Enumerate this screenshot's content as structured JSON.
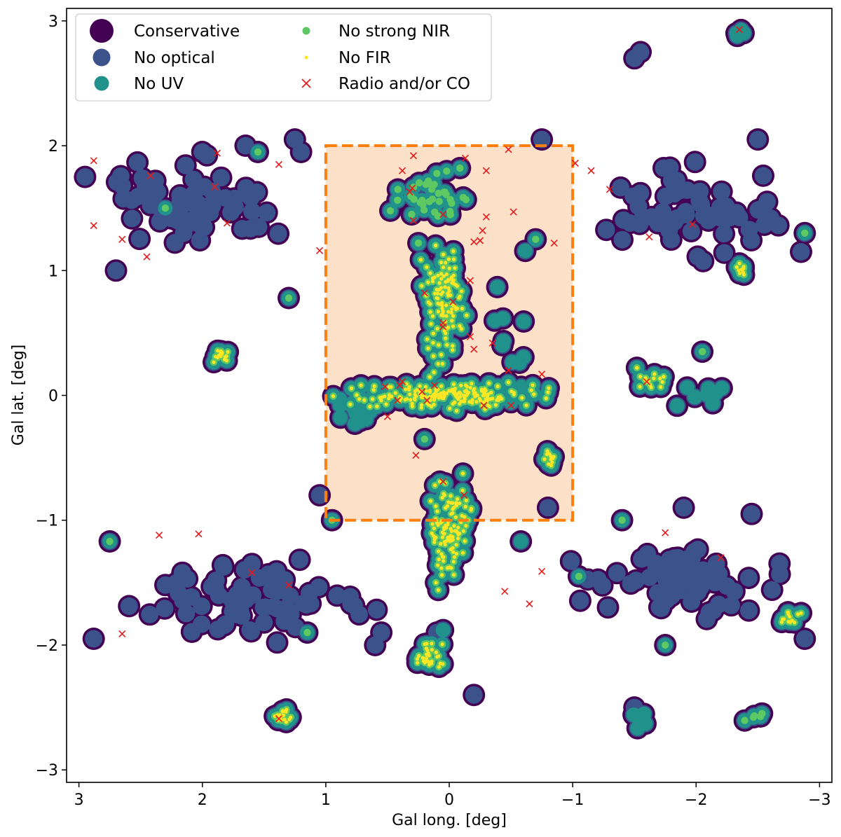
{
  "chart_data": {
    "type": "scatter",
    "xlabel": "Gal long. [deg]",
    "ylabel": "Gal lat. [deg]",
    "xlim": [
      3.1,
      -3.1
    ],
    "ylim": [
      -3.1,
      3.1
    ],
    "x_reversed": true,
    "x_ticks": [
      3,
      2,
      1,
      0,
      -1,
      -2,
      -3
    ],
    "y_ticks": [
      3,
      2,
      1,
      0,
      -1,
      -2,
      -3
    ],
    "x_tick_labels": [
      "3",
      "2",
      "1",
      "0",
      "−1",
      "−2",
      "−3"
    ],
    "y_tick_labels": [
      "3",
      "2",
      "1",
      "0",
      "−1",
      "−2",
      "−3"
    ],
    "grid": false,
    "legend_position": "top-left",
    "legend": [
      {
        "label": "Conservative",
        "marker": "circle-xl",
        "color": "#440154"
      },
      {
        "label": "No optical",
        "marker": "circle-lg",
        "color": "#3b528b"
      },
      {
        "label": "No UV",
        "marker": "circle-md",
        "color": "#21918c"
      },
      {
        "label": "No strong NIR",
        "marker": "circle-sm",
        "color": "#5ec962"
      },
      {
        "label": "No FIR",
        "marker": "circle-xs",
        "color": "#fde725"
      },
      {
        "label": "Radio and/or CO",
        "marker": "x",
        "color": "#e31a1c"
      }
    ],
    "region": {
      "l_min": -1,
      "l_max": 1,
      "b_min": -1,
      "b_max": 2,
      "fill": "#fde0c8",
      "edge": "#ff7f0e",
      "style": "dashed"
    },
    "clusters": [
      {
        "l": 0.0,
        "b": 0.0,
        "rl": 1.05,
        "rb": 0.13,
        "n": 190,
        "level": 4
      },
      {
        "l": 0.05,
        "b": 0.75,
        "rl": 0.22,
        "rb": 0.7,
        "n": 110,
        "level": 4
      },
      {
        "l": 0.0,
        "b": -1.1,
        "rl": 0.22,
        "rb": 0.55,
        "n": 110,
        "level": 4
      },
      {
        "l": 0.15,
        "b": -2.1,
        "rl": 0.2,
        "rb": 0.15,
        "n": 30,
        "level": 4
      },
      {
        "l": 0.1,
        "b": 1.6,
        "rl": 0.45,
        "rb": 0.3,
        "n": 35,
        "level": 3
      },
      {
        "l": 1.85,
        "b": 0.32,
        "rl": 0.1,
        "rb": 0.1,
        "n": 18,
        "level": 4
      },
      {
        "l": 1.35,
        "b": -2.57,
        "rl": 0.1,
        "rb": 0.08,
        "n": 18,
        "level": 4
      },
      {
        "l": -0.82,
        "b": -0.5,
        "rl": 0.08,
        "rb": 0.1,
        "n": 12,
        "level": 4
      },
      {
        "l": -1.6,
        "b": 0.12,
        "rl": 0.25,
        "rb": 0.15,
        "n": 15,
        "level": 4
      },
      {
        "l": -2.35,
        "b": 1.0,
        "rl": 0.1,
        "rb": 0.08,
        "n": 10,
        "level": 4
      },
      {
        "l": -2.75,
        "b": -1.8,
        "rl": 0.12,
        "rb": 0.1,
        "n": 12,
        "level": 4
      },
      {
        "l": 2.1,
        "b": 1.5,
        "rl": 0.9,
        "rb": 0.5,
        "n": 60,
        "level": 1
      },
      {
        "l": -2.0,
        "b": 1.5,
        "rl": 0.9,
        "rb": 0.5,
        "n": 60,
        "level": 1
      },
      {
        "l": 1.6,
        "b": -1.6,
        "rl": 1.2,
        "rb": 0.45,
        "n": 75,
        "level": 1
      },
      {
        "l": -1.9,
        "b": -1.5,
        "rl": 1.1,
        "rb": 0.45,
        "n": 65,
        "level": 1
      },
      {
        "l": -2.0,
        "b": 0.0,
        "rl": 0.35,
        "rb": 0.15,
        "n": 8,
        "level": 2
      },
      {
        "l": 0.75,
        "b": -0.1,
        "rl": 0.35,
        "rb": 0.3,
        "n": 12,
        "level": 2
      },
      {
        "l": -0.5,
        "b": 0.5,
        "rl": 0.25,
        "rb": 0.9,
        "n": 12,
        "level": 2
      },
      {
        "l": -2.45,
        "b": -2.58,
        "rl": 0.1,
        "rb": 0.05,
        "n": 5,
        "level": 3
      },
      {
        "l": -1.55,
        "b": -2.6,
        "rl": 0.15,
        "rb": 0.1,
        "n": 5,
        "level": 2
      },
      {
        "l": -2.35,
        "b": 2.9,
        "rl": 0.1,
        "rb": 0.05,
        "n": 5,
        "level": 2
      }
    ],
    "points": [
      [
        -1.5,
        2.7,
        1
      ],
      [
        -1.55,
        2.75,
        1
      ],
      [
        1.65,
        2.0,
        1
      ],
      [
        1.2,
        1.95,
        1
      ],
      [
        2.0,
        1.95,
        1
      ],
      [
        -2.5,
        2.05,
        1
      ],
      [
        2.65,
        1.68,
        1
      ],
      [
        -2.1,
        1.4,
        1
      ],
      [
        2.7,
        1.0,
        1
      ],
      [
        -2.85,
        1.15,
        1
      ],
      [
        1.25,
        2.05,
        1
      ],
      [
        0.55,
        -1.9,
        1
      ],
      [
        0.6,
        -2.0,
        1
      ],
      [
        0.1,
        -1.9,
        1
      ],
      [
        -0.2,
        -2.4,
        1
      ],
      [
        -1.5,
        -2.5,
        1
      ],
      [
        -1.9,
        -0.9,
        1
      ],
      [
        -2.45,
        -0.95,
        1
      ],
      [
        -1.85,
        -1.3,
        1
      ],
      [
        0.2,
        1.7,
        1
      ],
      [
        -0.75,
        2.05,
        1
      ],
      [
        2.95,
        1.75,
        1
      ],
      [
        -2.88,
        -1.95,
        1
      ],
      [
        2.88,
        -1.95,
        1
      ],
      [
        1.05,
        -0.8,
        1
      ],
      [
        -0.8,
        -0.9,
        1
      ],
      [
        0.05,
        -1.88,
        2
      ],
      [
        -0.58,
        -1.17,
        2
      ],
      [
        2.3,
        1.5,
        3
      ],
      [
        1.3,
        0.78,
        3
      ],
      [
        -0.7,
        1.25,
        3
      ],
      [
        -2.05,
        0.35,
        3
      ],
      [
        0.2,
        -0.35,
        3
      ],
      [
        -1.75,
        -2.0,
        3
      ],
      [
        -1.05,
        -1.45,
        3
      ],
      [
        0.95,
        -1.0,
        3
      ],
      [
        2.75,
        -1.17,
        3
      ],
      [
        1.55,
        1.95,
        3
      ],
      [
        -2.88,
        1.3,
        3
      ],
      [
        0.25,
        1.22,
        3
      ],
      [
        -1.4,
        -1.0,
        3
      ],
      [
        1.15,
        -1.9,
        3
      ]
    ],
    "crosses": [
      [
        2.88,
        1.88
      ],
      [
        2.42,
        1.76
      ],
      [
        1.88,
        1.94
      ],
      [
        1.38,
        1.85
      ],
      [
        0.38,
        1.8
      ],
      [
        0.29,
        1.92
      ],
      [
        -0.13,
        1.9
      ],
      [
        -0.3,
        1.8
      ],
      [
        -0.48,
        1.97
      ],
      [
        -1.02,
        1.86
      ],
      [
        -1.15,
        1.8
      ],
      [
        -1.3,
        1.65
      ],
      [
        0.32,
        1.63
      ],
      [
        0.3,
        1.66
      ],
      [
        0.29,
        1.4
      ],
      [
        0.05,
        1.45
      ],
      [
        -0.27,
        1.32
      ],
      [
        -0.3,
        1.43
      ],
      [
        -0.52,
        1.47
      ],
      [
        2.88,
        1.36
      ],
      [
        2.65,
        1.25
      ],
      [
        2.45,
        1.11
      ],
      [
        1.9,
        1.67
      ],
      [
        1.8,
        1.38
      ],
      [
        1.05,
        1.16
      ],
      [
        -0.85,
        1.22
      ],
      [
        -0.2,
        1.23
      ],
      [
        -0.25,
        1.24
      ],
      [
        -0.17,
        0.92
      ],
      [
        -0.03,
        0.75
      ],
      [
        0.2,
        0.82
      ],
      [
        0.05,
        0.58
      ],
      [
        0.05,
        0.55
      ],
      [
        -0.17,
        0.47
      ],
      [
        -0.2,
        0.37
      ],
      [
        -0.35,
        0.42
      ],
      [
        -0.48,
        0.2
      ],
      [
        -0.75,
        0.17
      ],
      [
        0.52,
        0.07
      ],
      [
        0.38,
        0.11
      ],
      [
        0.4,
        0.08
      ],
      [
        0.22,
        0.03
      ],
      [
        0.12,
        0.08
      ],
      [
        0.18,
        -0.04
      ],
      [
        0.42,
        -0.04
      ],
      [
        0.5,
        -0.17
      ],
      [
        -0.28,
        -0.08
      ],
      [
        -0.5,
        -0.08
      ],
      [
        0.27,
        -0.48
      ],
      [
        0.05,
        -0.69
      ],
      [
        -0.12,
        -0.8
      ],
      [
        2.35,
        -1.12
      ],
      [
        2.03,
        -1.11
      ],
      [
        1.6,
        -1.42
      ],
      [
        1.3,
        -1.52
      ],
      [
        2.65,
        -1.91
      ],
      [
        1.38,
        -2.59
      ],
      [
        -0.45,
        -1.57
      ],
      [
        -0.65,
        -1.67
      ],
      [
        -0.75,
        -1.41
      ],
      [
        -1.75,
        -1.1
      ],
      [
        -2.2,
        -1.3
      ],
      [
        -1.62,
        1.27
      ],
      [
        -1.97,
        1.37
      ],
      [
        -1.6,
        0.11
      ],
      [
        -2.35,
        2.93
      ]
    ]
  }
}
